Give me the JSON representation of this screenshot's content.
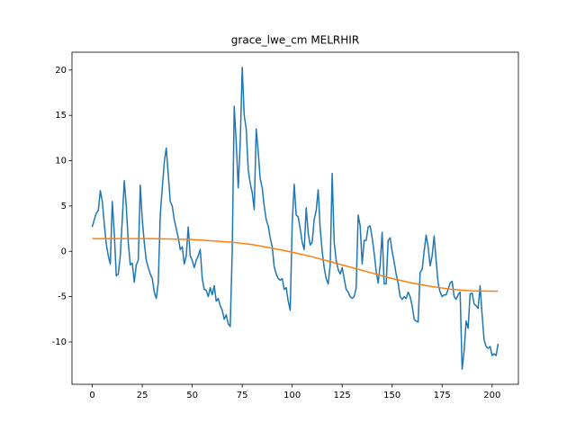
{
  "chart_data": {
    "type": "line",
    "title": "grace_lwe_cm MELRHIR",
    "x": [
      0,
      1,
      2,
      3,
      4,
      5,
      6,
      7,
      8,
      9,
      10,
      11,
      12,
      13,
      14,
      15,
      16,
      17,
      18,
      19,
      20,
      21,
      22,
      23,
      24,
      25,
      26,
      27,
      28,
      29,
      30,
      31,
      32,
      33,
      34,
      35,
      36,
      37,
      38,
      39,
      40,
      41,
      42,
      43,
      44,
      45,
      46,
      47,
      48,
      49,
      50,
      51,
      52,
      53,
      54,
      55,
      56,
      57,
      58,
      59,
      60,
      61,
      62,
      63,
      64,
      65,
      66,
      67,
      68,
      69,
      70,
      71,
      72,
      73,
      74,
      75,
      76,
      77,
      78,
      79,
      80,
      81,
      82,
      83,
      84,
      85,
      86,
      87,
      88,
      89,
      90,
      91,
      92,
      93,
      94,
      95,
      96,
      97,
      98,
      99,
      100,
      101,
      102,
      103,
      104,
      105,
      106,
      107,
      108,
      109,
      110,
      111,
      112,
      113,
      114,
      115,
      116,
      117,
      118,
      119,
      120,
      121,
      122,
      123,
      124,
      125,
      126,
      127,
      128,
      129,
      130,
      131,
      132,
      133,
      134,
      135,
      136,
      137,
      138,
      139,
      140,
      141,
      142,
      143,
      144,
      145,
      146,
      147,
      148,
      149,
      150,
      151,
      152,
      153,
      154,
      155,
      156,
      157,
      158,
      159,
      160,
      161,
      162,
      163,
      164,
      165,
      166,
      167,
      168,
      169,
      170,
      171,
      172,
      173,
      174,
      175,
      176,
      177,
      178,
      179,
      180,
      181,
      182,
      183,
      184,
      185,
      186,
      187,
      188,
      189,
      190,
      191,
      192,
      193,
      194,
      195,
      196,
      197,
      198,
      199,
      200,
      201,
      202,
      203
    ],
    "series": [
      {
        "color": "#1f77b4",
        "values": [
          2.7,
          3.5,
          4.2,
          4.5,
          6.7,
          5.5,
          3.0,
          0.8,
          -0.5,
          -1.4,
          5.5,
          2.0,
          -2.7,
          -2.5,
          -0.5,
          3.5,
          7.8,
          5.0,
          1.0,
          -1.5,
          -1.3,
          -3.4,
          -1.5,
          -1.0,
          7.3,
          3.5,
          1.0,
          -1.0,
          -1.8,
          -2.5,
          -3.0,
          -4.5,
          -5.2,
          -3.5,
          4.0,
          7.0,
          9.8,
          11.4,
          8.5,
          5.5,
          5.0,
          3.5,
          2.5,
          1.5,
          0.2,
          0.5,
          -1.4,
          -0.5,
          2.7,
          -0.5,
          -1.0,
          -1.8,
          -1.0,
          -0.5,
          0.2,
          -3.0,
          -4.2,
          -4.3,
          -5.0,
          -4.0,
          -4.8,
          -3.8,
          -5.5,
          -5.2,
          -6.0,
          -6.5,
          -7.5,
          -7.0,
          -8.0,
          -8.3,
          0.0,
          16.0,
          12.0,
          7.0,
          12.0,
          20.3,
          15.0,
          13.5,
          9.0,
          7.5,
          6.5,
          4.6,
          13.5,
          11.0,
          8.0,
          7.0,
          5.0,
          3.5,
          2.8,
          1.5,
          0.5,
          -1.7,
          -2.5,
          -3.0,
          -3.2,
          -3.0,
          -4.2,
          -4.0,
          -5.5,
          -6.5,
          3.0,
          7.4,
          4.0,
          3.8,
          2.5,
          1.0,
          0.2,
          4.8,
          2.0,
          0.7,
          1.0,
          3.5,
          4.5,
          6.8,
          2.5,
          0.0,
          -1.8,
          -3.0,
          -3.6,
          -1.5,
          8.6,
          1.0,
          -1.0,
          -2.0,
          -2.5,
          -1.8,
          -3.0,
          -4.2,
          -4.5,
          -5.0,
          -5.2,
          -5.0,
          -4.0,
          4.0,
          2.8,
          -1.4,
          1.2,
          1.2,
          2.7,
          2.8,
          1.5,
          -0.2,
          -2.2,
          -3.5,
          -1.5,
          2.1,
          -3.6,
          -3.6,
          1.2,
          1.5,
          0.0,
          -1.2,
          -2.5,
          -3.5,
          -5.0,
          -5.3,
          -5.0,
          -5.2,
          -4.5,
          -5.0,
          -6.0,
          -7.5,
          -7.7,
          -7.8,
          -2.3,
          -2.0,
          0.0,
          1.8,
          0.5,
          -1.6,
          -0.5,
          1.7,
          -1.0,
          -3.5,
          -4.5,
          -5.0,
          -4.8,
          -4.8,
          -4.2,
          -3.5,
          -3.3,
          -5.0,
          -5.3,
          -4.8,
          -4.5,
          -13.0,
          -11.0,
          -7.7,
          -8.5,
          -4.7,
          -4.6,
          -5.8,
          -6.0,
          -6.3,
          -3.8,
          -7.0,
          -9.8,
          -10.5,
          -10.7,
          -10.5,
          -11.5,
          -11.3,
          -11.5,
          -10.2
        ]
      },
      {
        "color": "#ff7f0e",
        "x": [
          0,
          10,
          20,
          30,
          40,
          50,
          60,
          70,
          80,
          90,
          100,
          110,
          120,
          130,
          140,
          150,
          160,
          170,
          180,
          190,
          203
        ],
        "values": [
          1.4,
          1.4,
          1.4,
          1.4,
          1.35,
          1.3,
          1.15,
          1.0,
          0.75,
          0.35,
          -0.1,
          -0.6,
          -1.2,
          -1.8,
          -2.4,
          -3.0,
          -3.5,
          -3.9,
          -4.2,
          -4.35,
          -4.4
        ]
      }
    ],
    "xlim": [
      -10.15,
      213.15
    ],
    "ylim": [
      -14.67,
      21.97
    ],
    "xticks": [
      0,
      25,
      50,
      75,
      100,
      125,
      150,
      175,
      200
    ],
    "yticks": [
      -10,
      -5,
      0,
      5,
      10,
      15,
      20
    ]
  }
}
